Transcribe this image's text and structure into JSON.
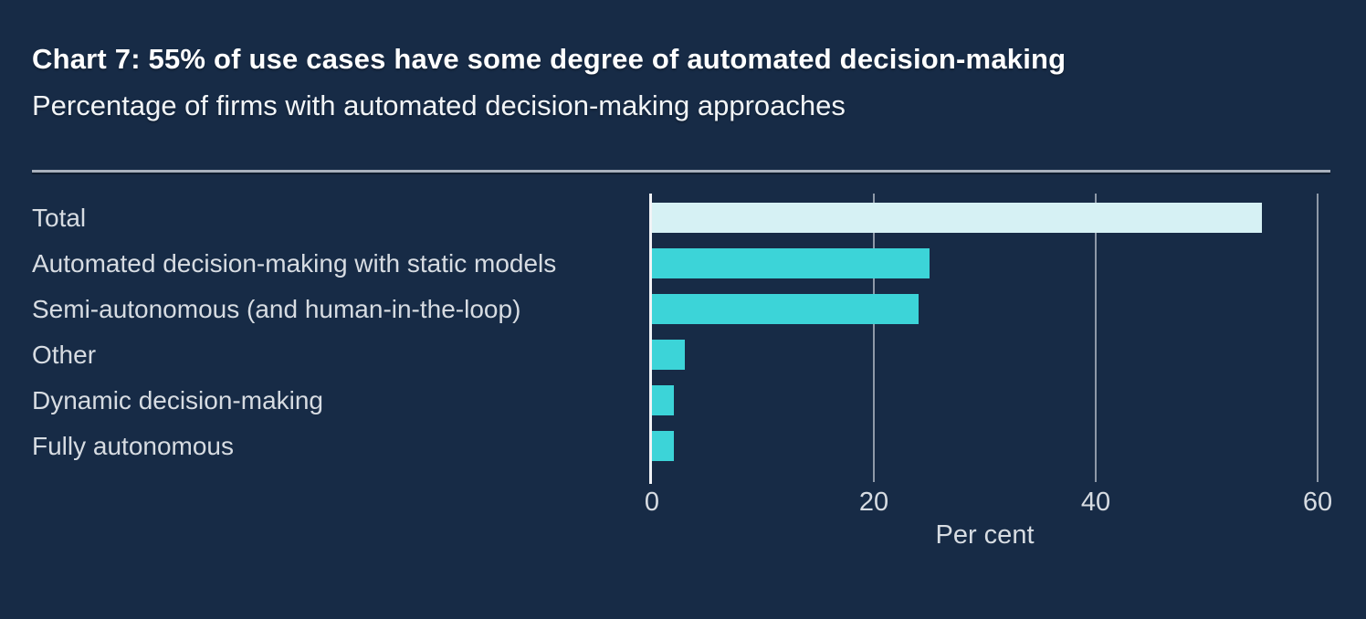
{
  "header": {
    "title": "Chart 7: 55% of use cases have some degree of automated decision-making",
    "subtitle": "Percentage of firms with automated decision-making approaches"
  },
  "chart_data": {
    "type": "bar",
    "orientation": "horizontal",
    "title": "Chart 7: 55% of use cases have some degree of automated decision-making",
    "subtitle": "Percentage of firms with automated decision-making approaches",
    "categories": [
      "Total",
      "Automated decision-making with static models",
      "Semi-autonomous (and human-in-the-loop)",
      "Other",
      "Dynamic decision-making",
      "Fully autonomous"
    ],
    "values": [
      55,
      25,
      24,
      3,
      2,
      2
    ],
    "bar_colors": [
      "#D6F1F4",
      "#3CD4D8",
      "#3CD4D8",
      "#3CD4D8",
      "#3CD4D8",
      "#3CD4D8"
    ],
    "xlabel": "Per cent",
    "ylabel": "",
    "xlim": [
      0,
      60
    ],
    "xticks": [
      0,
      20,
      40,
      60
    ],
    "grid": "vertical gridlines at x ticks",
    "legend": "none"
  },
  "colors": {
    "background": "#172B46",
    "bar_teal": "#3CD4D8",
    "bar_pale": "#D6F1F4",
    "gridline": "#8E99A8",
    "axis_line": "#F0F2F5",
    "separator": "#A8B1BD",
    "label_text": "#D7DCE2",
    "title_text": "#FFFFFF"
  }
}
